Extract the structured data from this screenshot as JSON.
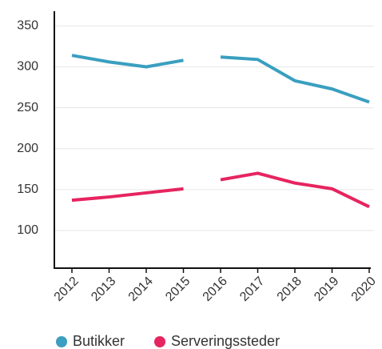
{
  "chart_data": {
    "type": "line",
    "categories": [
      "2012",
      "2013",
      "2014",
      "2015",
      "2016",
      "2017",
      "2018",
      "2019",
      "2020"
    ],
    "line_break_between": [
      [
        "2015",
        "2016"
      ]
    ],
    "series": [
      {
        "name": "Butikker",
        "color": "#3a9fc0",
        "values": [
          314,
          306,
          300,
          308,
          312,
          309,
          283,
          273,
          257
        ]
      },
      {
        "name": "Serveringssteder",
        "color": "#e6245f",
        "values": [
          137,
          141,
          146,
          151,
          162,
          170,
          158,
          151,
          129
        ]
      }
    ],
    "ylim": [
      54,
      368
    ],
    "yticks": [
      100,
      150,
      200,
      250,
      300,
      350
    ],
    "grid": true,
    "legend": "bottom"
  }
}
